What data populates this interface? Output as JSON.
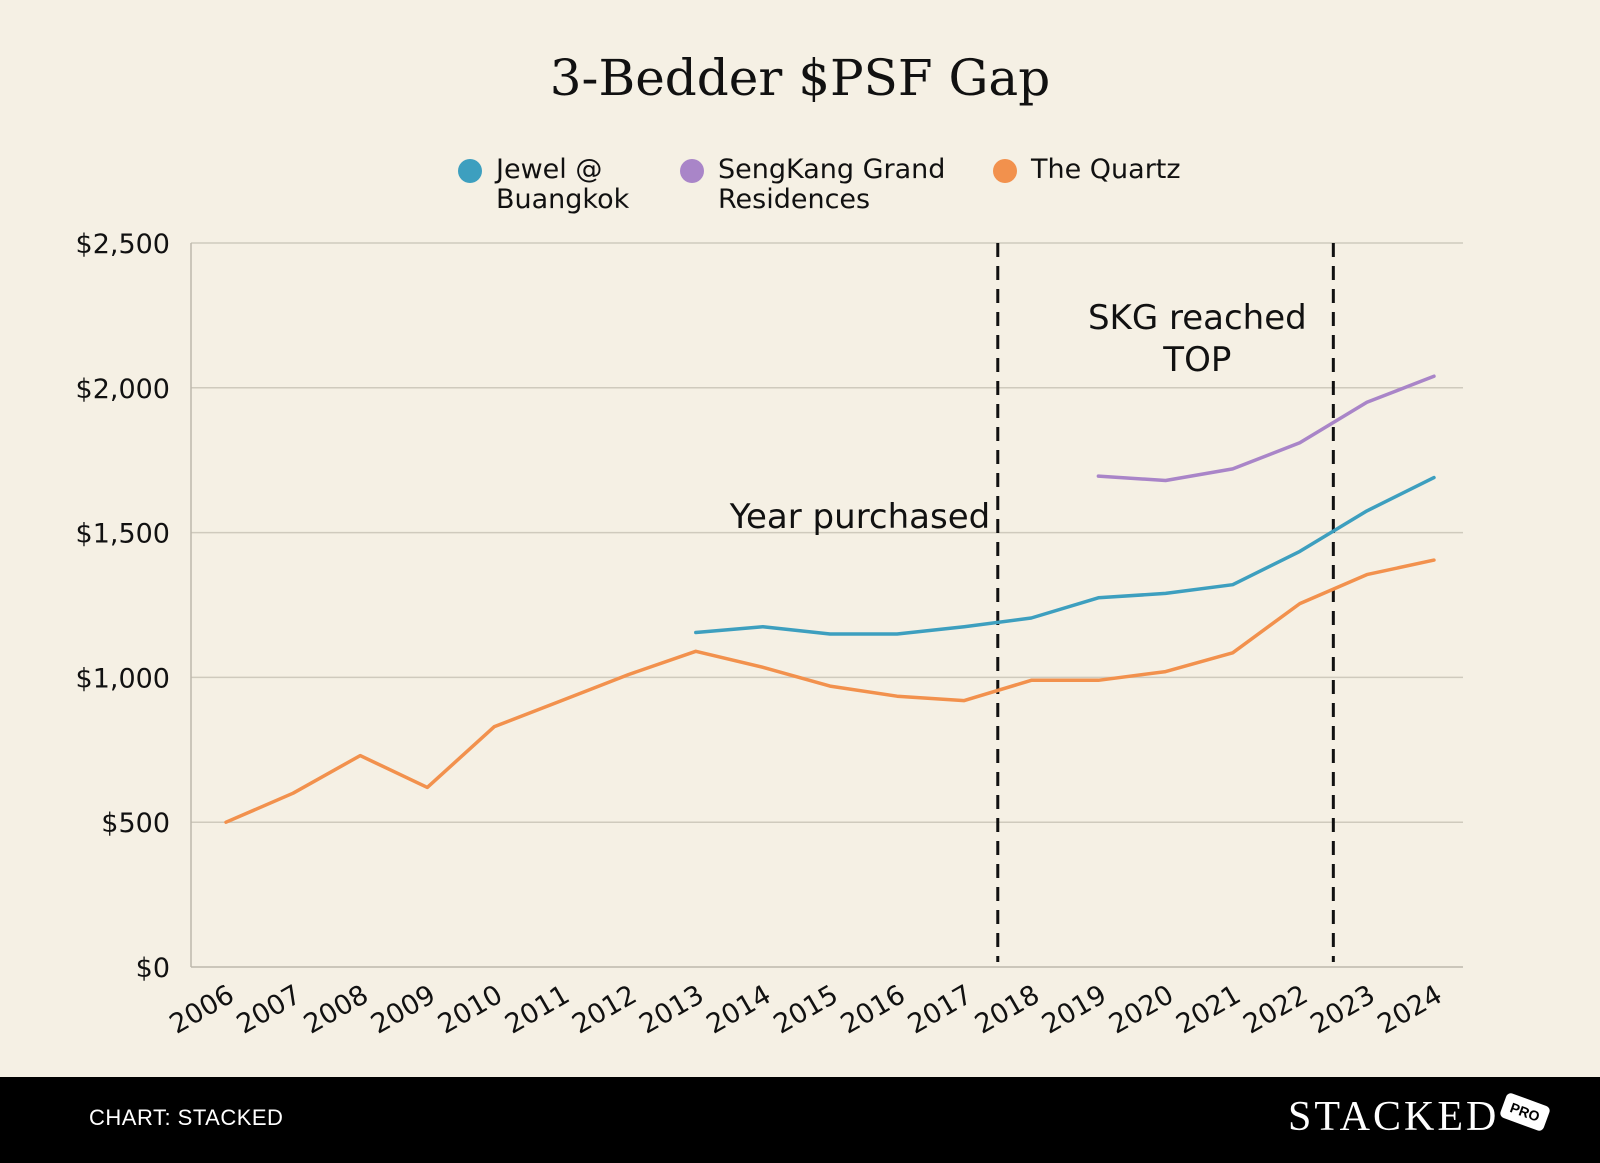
{
  "chart_data": {
    "type": "line",
    "title": "3-Bedder $PSF Gap",
    "xlabel": "",
    "ylabel": "",
    "x": [
      "2006",
      "2007",
      "2008",
      "2009",
      "2010",
      "2011",
      "2012",
      "2013",
      "2014",
      "2015",
      "2016",
      "2017",
      "2018",
      "2019",
      "2020",
      "2021",
      "2022",
      "2023",
      "2024"
    ],
    "ylim": [
      0,
      2500
    ],
    "yticks": [
      0,
      500,
      1000,
      1500,
      2000,
      2500
    ],
    "ytick_labels": [
      "$0",
      "$500",
      "$1,000",
      "$1,500",
      "$2,000",
      "$2,500"
    ],
    "grid": true,
    "legend_position": "top-center",
    "series": [
      {
        "name": "Jewel @ Buangkok",
        "legend_lines": [
          "Jewel @",
          "Buangkok"
        ],
        "color": "#3d9fbf",
        "values": [
          null,
          null,
          null,
          null,
          null,
          null,
          null,
          1155,
          1175,
          1150,
          1150,
          1175,
          1205,
          1275,
          1290,
          1320,
          1435,
          1575,
          1690
        ]
      },
      {
        "name": "SengKang Grand Residences",
        "legend_lines": [
          "SengKang Grand",
          "Residences"
        ],
        "color": "#a985c8",
        "values": [
          null,
          null,
          null,
          null,
          null,
          null,
          null,
          null,
          null,
          null,
          null,
          null,
          null,
          1695,
          1680,
          1720,
          1810,
          1950,
          2040
        ]
      },
      {
        "name": "The Quartz",
        "legend_lines": [
          "The Quartz"
        ],
        "color": "#f2914d",
        "values": [
          500,
          600,
          730,
          620,
          830,
          920,
          1010,
          1090,
          1035,
          970,
          935,
          920,
          990,
          990,
          1020,
          1085,
          1255,
          1355,
          1405
        ]
      }
    ],
    "annotations": [
      {
        "type": "vline",
        "at": 2017.5,
        "label_lines": [
          "Year purchased"
        ],
        "label_side": "left"
      },
      {
        "type": "vline",
        "at": 2022.5,
        "label_lines": [
          "SKG reached",
          "TOP"
        ],
        "label_side": "left"
      }
    ]
  },
  "footer": {
    "credit": "CHART: STACKED",
    "brand": "STACKED",
    "badge": "PRO"
  }
}
